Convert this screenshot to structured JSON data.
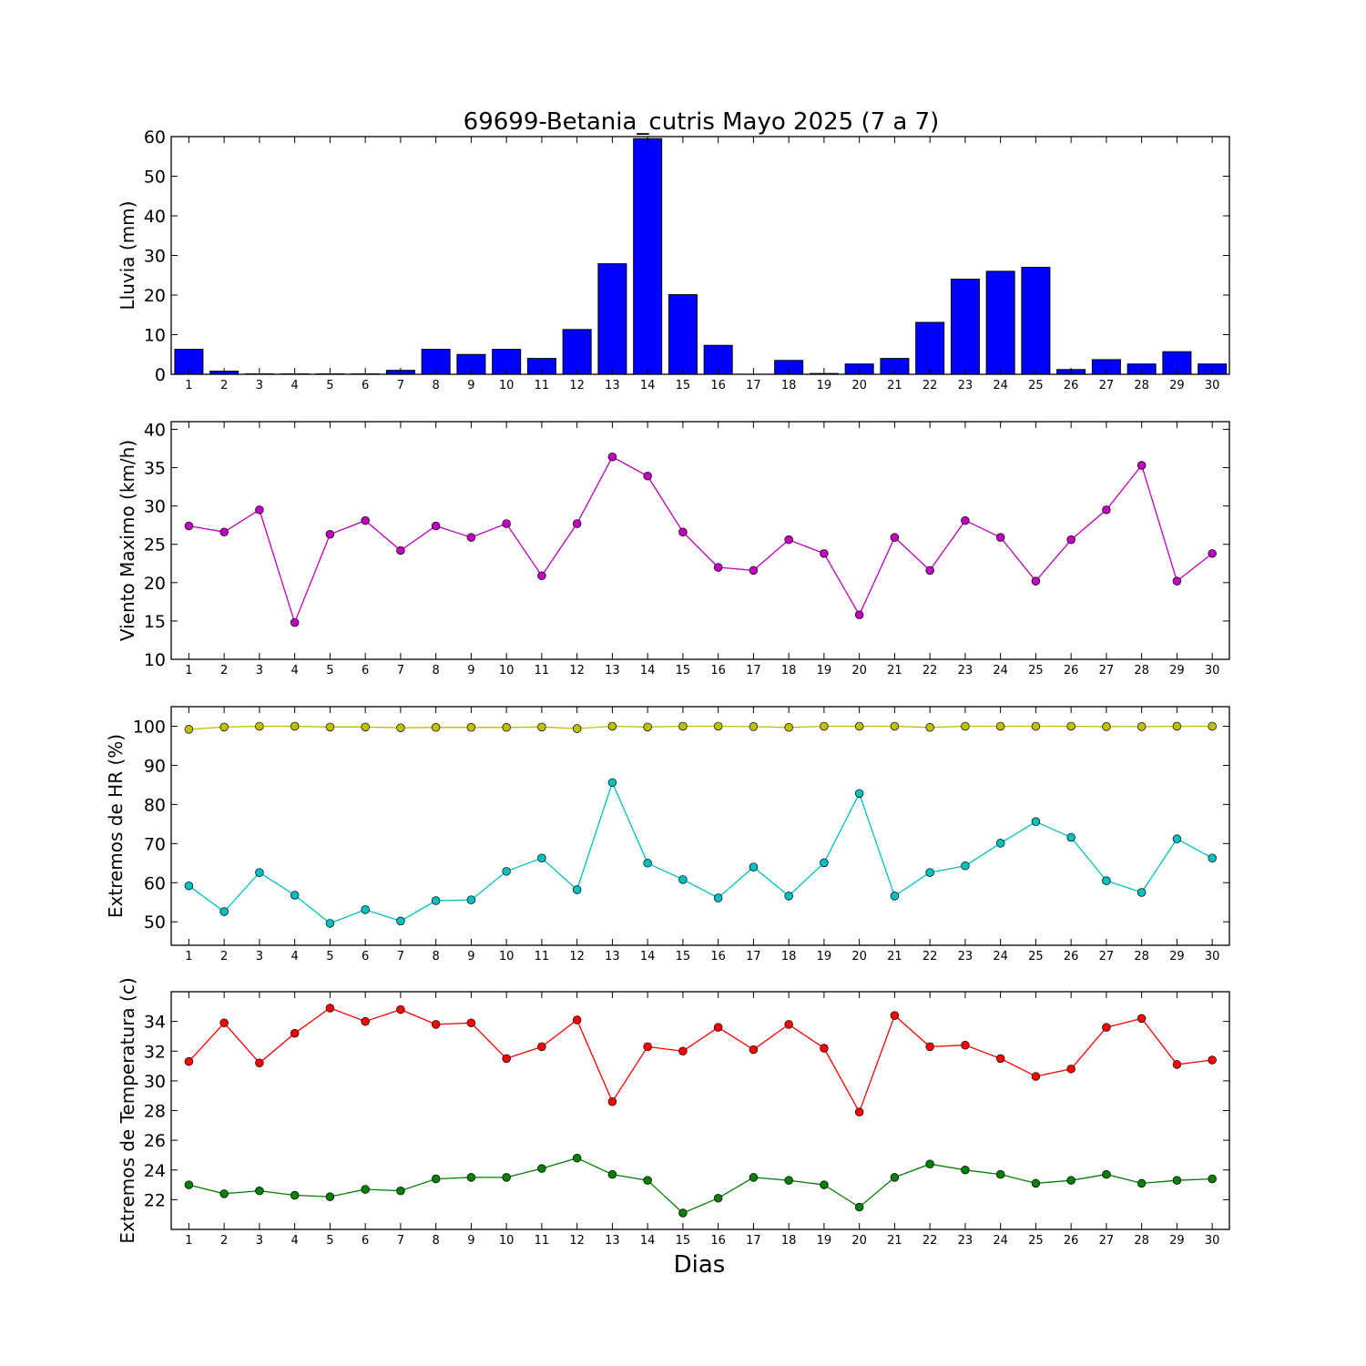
{
  "title": "69699-Betania_cutris Mayo 2025  (7 a 7)",
  "xlabel": "Dias",
  "chart_data": [
    {
      "type": "bar",
      "ylabel": "Lluvia (mm)",
      "ylim": [
        0,
        60
      ],
      "yticks": [
        0,
        10,
        20,
        30,
        40,
        50,
        60
      ],
      "categories": [
        1,
        2,
        3,
        4,
        5,
        6,
        7,
        8,
        9,
        10,
        11,
        12,
        13,
        14,
        15,
        16,
        17,
        18,
        19,
        20,
        21,
        22,
        23,
        24,
        25,
        26,
        27,
        28,
        29,
        30
      ],
      "series": [
        {
          "color": "#0000ff",
          "values": [
            6.3,
            0.8,
            0.1,
            0.1,
            0.1,
            0.1,
            1.0,
            6.3,
            5.0,
            6.3,
            4.0,
            11.3,
            27.9,
            59.5,
            20.1,
            7.3,
            0,
            3.5,
            0.2,
            2.6,
            4.0,
            13.1,
            24.0,
            26.0,
            27.0,
            1.2,
            3.7,
            2.6,
            5.7,
            2.6
          ]
        }
      ]
    },
    {
      "type": "line",
      "ylabel": "Viento Maximo (km/h)",
      "ylim": [
        10,
        41
      ],
      "yticks": [
        10,
        15,
        20,
        25,
        30,
        35,
        40
      ],
      "x": [
        1,
        2,
        3,
        4,
        5,
        6,
        7,
        8,
        9,
        10,
        11,
        12,
        13,
        14,
        15,
        16,
        17,
        18,
        19,
        20,
        21,
        22,
        23,
        24,
        25,
        26,
        27,
        28,
        29,
        30
      ],
      "series": [
        {
          "color": "#bf00bf",
          "values": [
            27.4,
            26.6,
            29.5,
            14.8,
            26.3,
            28.1,
            24.2,
            27.4,
            25.9,
            27.7,
            20.9,
            27.7,
            36.4,
            33.9,
            26.6,
            22.0,
            21.6,
            25.6,
            23.8,
            15.8,
            25.9,
            21.6,
            28.1,
            25.9,
            20.2,
            25.6,
            29.5,
            35.3,
            20.2,
            23.8
          ]
        }
      ]
    },
    {
      "type": "line",
      "ylabel": "Extremos de HR (%)",
      "ylim": [
        44,
        105
      ],
      "yticks": [
        50,
        60,
        70,
        80,
        90,
        100
      ],
      "x": [
        1,
        2,
        3,
        4,
        5,
        6,
        7,
        8,
        9,
        10,
        11,
        12,
        13,
        14,
        15,
        16,
        17,
        18,
        19,
        20,
        21,
        22,
        23,
        24,
        25,
        26,
        27,
        28,
        29,
        30
      ],
      "series": [
        {
          "color": "#bfbf00",
          "values": [
            99.2,
            99.8,
            100,
            100,
            99.8,
            99.8,
            99.6,
            99.7,
            99.7,
            99.7,
            99.8,
            99.4,
            100,
            99.8,
            100,
            100,
            99.9,
            99.7,
            100,
            100,
            100,
            99.7,
            100,
            100,
            100,
            100,
            99.9,
            99.9,
            100,
            100
          ]
        },
        {
          "color": "#00bfbf",
          "values": [
            59.2,
            52.6,
            62.6,
            56.8,
            49.6,
            53.1,
            50.2,
            55.4,
            55.6,
            62.9,
            66.3,
            58.2,
            85.6,
            65.0,
            60.8,
            56.1,
            64.0,
            56.6,
            65.1,
            82.8,
            56.6,
            62.6,
            64.3,
            70.1,
            75.6,
            71.6,
            60.5,
            57.5,
            71.2,
            66.3
          ]
        }
      ]
    },
    {
      "type": "line",
      "ylabel": "Extremos de Temperatura (c)",
      "ylim": [
        20,
        36
      ],
      "yticks": [
        22,
        24,
        26,
        28,
        30,
        32,
        34
      ],
      "x": [
        1,
        2,
        3,
        4,
        5,
        6,
        7,
        8,
        9,
        10,
        11,
        12,
        13,
        14,
        15,
        16,
        17,
        18,
        19,
        20,
        21,
        22,
        23,
        24,
        25,
        26,
        27,
        28,
        29,
        30
      ],
      "series": [
        {
          "color": "#ff0000",
          "values": [
            31.3,
            33.9,
            31.2,
            33.2,
            34.9,
            34.0,
            34.8,
            33.8,
            33.9,
            31.5,
            32.3,
            34.1,
            28.6,
            32.3,
            32.0,
            33.6,
            32.1,
            33.8,
            32.2,
            27.9,
            34.4,
            32.3,
            32.4,
            31.5,
            30.3,
            30.8,
            33.6,
            34.2,
            31.1,
            31.4
          ]
        },
        {
          "color": "#007f00",
          "values": [
            23.0,
            22.4,
            22.6,
            22.3,
            22.2,
            22.7,
            22.6,
            23.4,
            23.5,
            23.5,
            24.1,
            24.8,
            23.7,
            23.3,
            21.1,
            22.1,
            23.5,
            23.3,
            23.0,
            21.5,
            23.5,
            24.4,
            24.0,
            23.7,
            23.1,
            23.3,
            23.7,
            23.1,
            23.3,
            23.4
          ]
        }
      ]
    }
  ]
}
